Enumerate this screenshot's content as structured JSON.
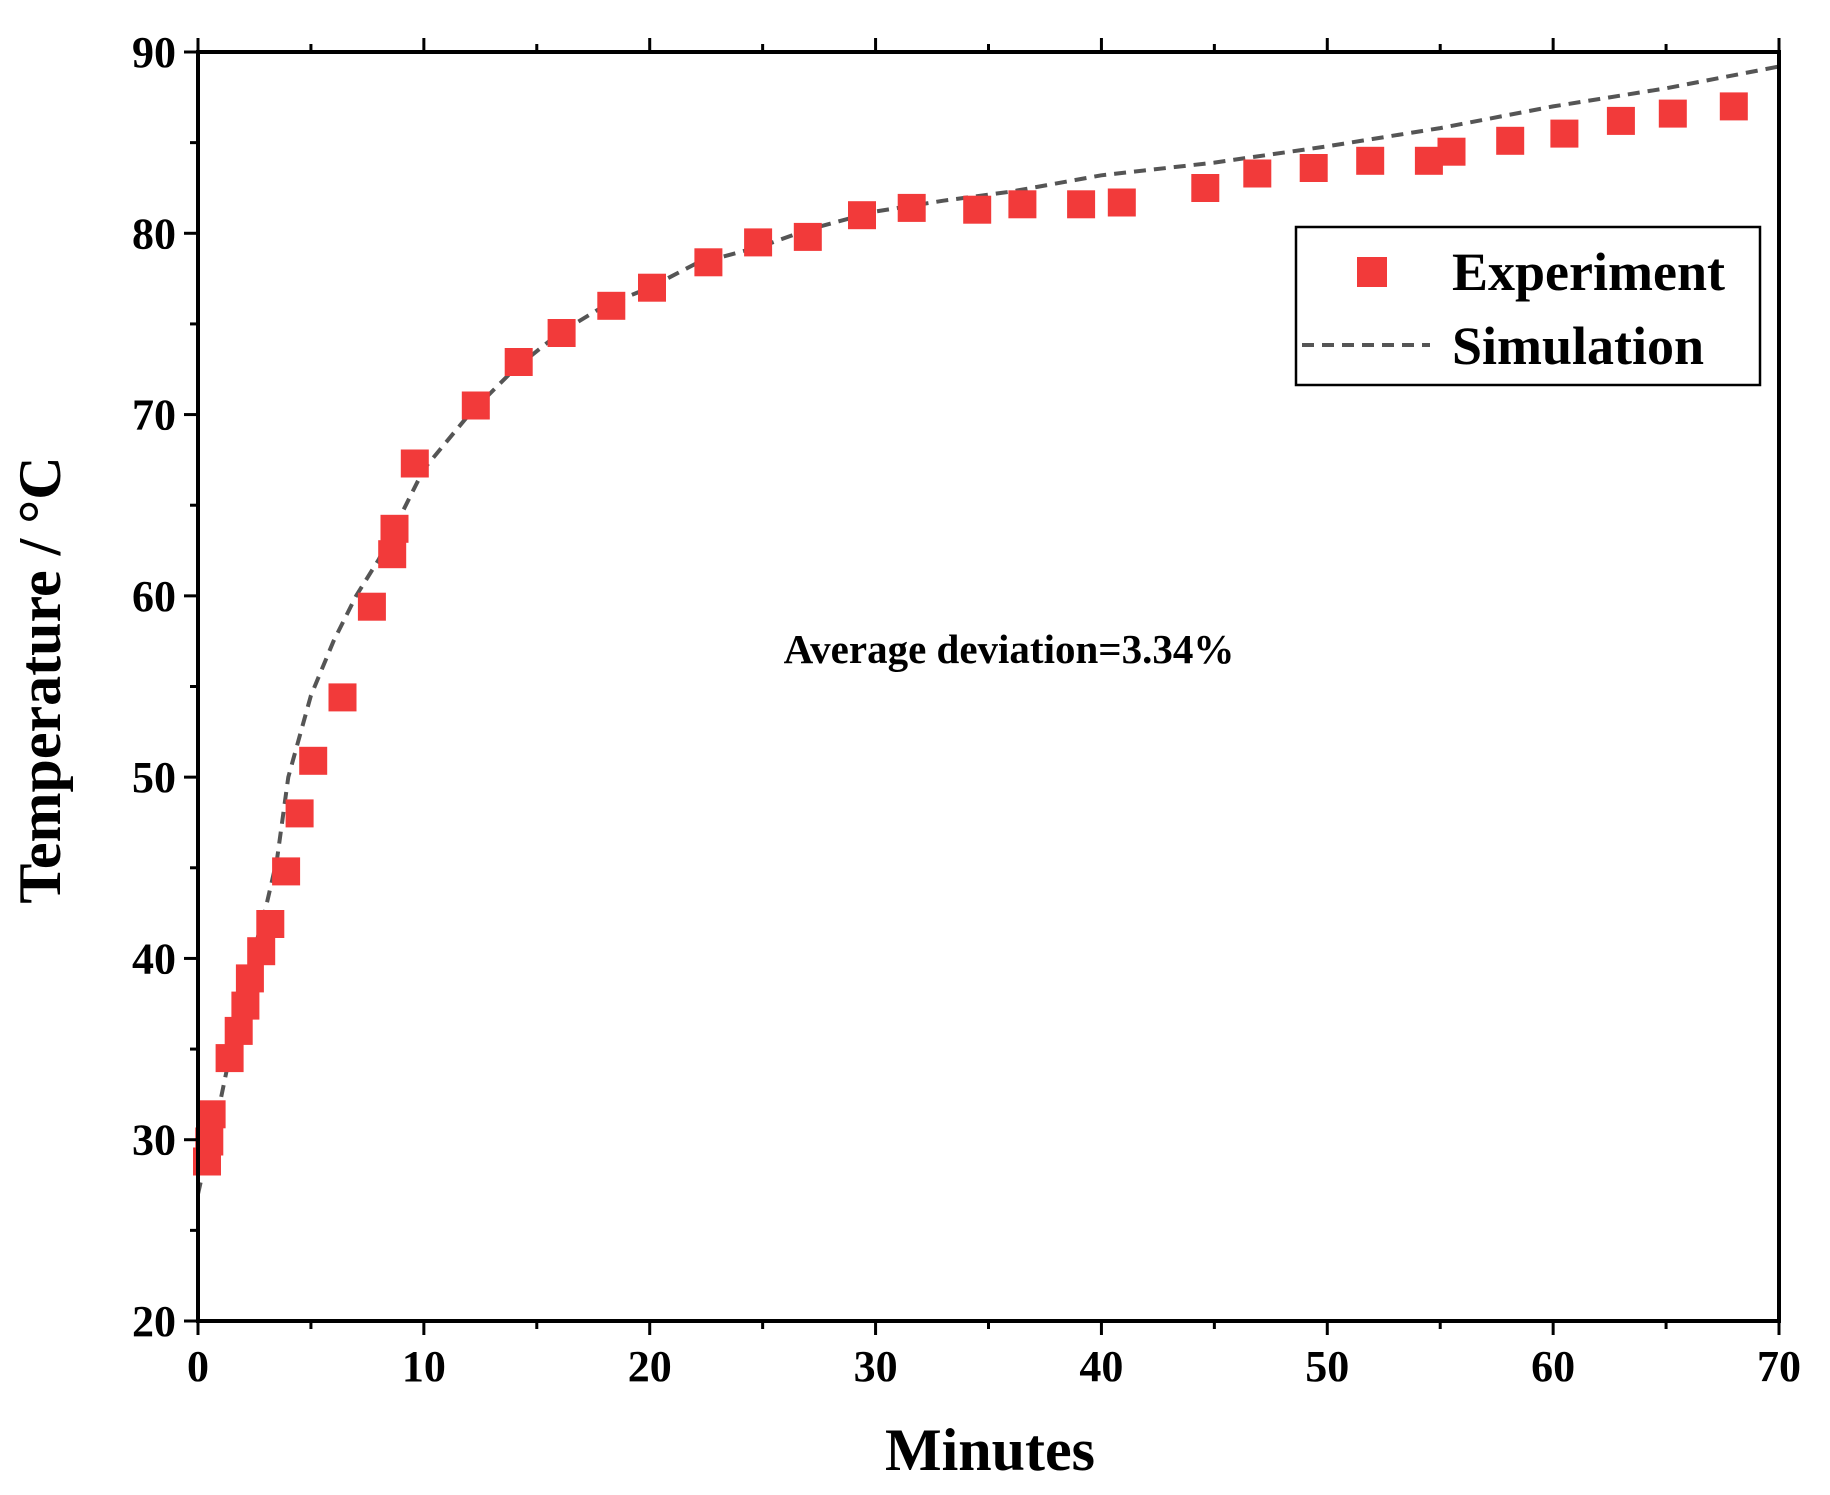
{
  "chart_data": {
    "type": "scatter",
    "title": "",
    "xlabel": "Minutes",
    "ylabel": "Temperature / °C",
    "xlim": [
      0,
      70
    ],
    "ylim": [
      20,
      90
    ],
    "xticks": [
      "0",
      "10",
      "20",
      "30",
      "40",
      "50",
      "60",
      "70"
    ],
    "yticks": [
      "20",
      "30",
      "40",
      "50",
      "60",
      "70",
      "80",
      "90"
    ],
    "grid": false,
    "legend_position": "top-right",
    "annotation": "Average deviation=3.34%",
    "colors": {
      "experiment": "#f23a3a",
      "simulation": "#555555"
    },
    "series": [
      {
        "name": "Experiment",
        "kind": "markers",
        "x": [
          0.4,
          0.5,
          0.6,
          1.4,
          1.8,
          2.1,
          2.3,
          2.8,
          3.2,
          3.9,
          4.5,
          5.1,
          6.4,
          7.7,
          8.6,
          8.7,
          9.6,
          12.3,
          14.2,
          16.1,
          18.3,
          20.1,
          22.6,
          24.8,
          27.0,
          29.4,
          31.6,
          34.5,
          36.5,
          39.1,
          40.9,
          44.6,
          46.9,
          49.4,
          51.9,
          54.5,
          55.5,
          58.1,
          60.5,
          63.0,
          65.3,
          68.0
        ],
        "y": [
          28.8,
          29.9,
          31.4,
          34.5,
          36.0,
          37.4,
          38.9,
          40.4,
          41.9,
          44.8,
          48.0,
          50.9,
          54.4,
          59.4,
          62.3,
          63.7,
          67.3,
          70.5,
          72.9,
          74.5,
          76.0,
          77.0,
          78.4,
          79.5,
          79.8,
          81.0,
          81.4,
          81.3,
          81.6,
          81.6,
          81.7,
          82.5,
          83.3,
          83.6,
          84.0,
          84.0,
          84.5,
          85.1,
          85.5,
          86.2,
          86.6,
          87.0
        ]
      },
      {
        "name": "Simulation",
        "kind": "dashed-line",
        "x": [
          0,
          0.5,
          1,
          1.5,
          2,
          2.5,
          3,
          3.5,
          4,
          5,
          6,
          7,
          8,
          9,
          10,
          12,
          14,
          16,
          18,
          20,
          22,
          25,
          27,
          30,
          33,
          36,
          40,
          45,
          50,
          52,
          55,
          60,
          65,
          70
        ],
        "y": [
          27.0,
          29.8,
          32.2,
          35.2,
          38.2,
          40.5,
          42.8,
          45.5,
          50.0,
          54.5,
          57.5,
          60.0,
          62.0,
          64.5,
          67.0,
          70.0,
          72.5,
          74.5,
          76.0,
          77.0,
          78.3,
          79.3,
          80.2,
          81.2,
          81.8,
          82.3,
          83.2,
          83.9,
          84.8,
          85.2,
          85.8,
          87.0,
          88.0,
          89.2
        ]
      }
    ]
  }
}
